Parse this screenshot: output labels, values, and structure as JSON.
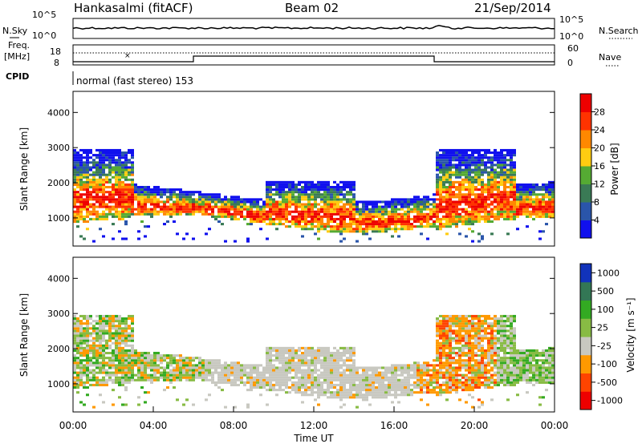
{
  "header": {
    "station": "Hankasalmi (fitACF)",
    "beam": "Beam 02",
    "date": "21/Sep/2014"
  },
  "noise_panel": {
    "left_label": "N.Sky",
    "left_ticks": [
      "10^5",
      "10^0"
    ],
    "right_label": "N.Search",
    "right_ticks": [
      "10^5",
      "10^0"
    ]
  },
  "freq_panel": {
    "left_label_1": "Freq.",
    "left_label_2": "[MHz]",
    "left_ticks": [
      "18",
      "8"
    ],
    "right_label": "Nave",
    "right_ticks": [
      "60",
      "0"
    ]
  },
  "cpid_panel": {
    "label": "CPID",
    "text": "normal (fast stereo) 153"
  },
  "colors": {
    "power": [
      "#1010ee",
      "#2a55aa",
      "#3a7a55",
      "#55aa33",
      "#ffcc11",
      "#ff8800",
      "#ff3300",
      "#ee0000"
    ],
    "velocity": [
      "#ee0000",
      "#ff4400",
      "#ff9900",
      "#c8c8c0",
      "#88bb44",
      "#33aa22",
      "#337755",
      "#1133bb"
    ]
  },
  "chart_data": [
    {
      "type": "heatmap",
      "name": "power",
      "xlabel": "",
      "ylabel": "Slant Range [km]",
      "ylim": [
        200,
        4600
      ],
      "yticks": [
        "1000",
        "2000",
        "3000",
        "4000"
      ],
      "colorbar_label": "Power [dB]",
      "colorbar_ticks": [
        "4",
        "8",
        "12",
        "16",
        "20",
        "24",
        "28"
      ],
      "colorbar_range": [
        0,
        32
      ]
    },
    {
      "type": "heatmap",
      "name": "velocity",
      "xlabel": "Time UT",
      "ylabel": "Slant Range [km]",
      "ylim": [
        200,
        4600
      ],
      "yticks": [
        "1000",
        "2000",
        "3000",
        "4000"
      ],
      "xticks": [
        "00:00",
        "04:00",
        "08:00",
        "12:00",
        "16:00",
        "20:00",
        "00:00"
      ],
      "xlim_hours": [
        0,
        24
      ],
      "colorbar_label": "Velocity [m s⁻¹]",
      "colorbar_ticks": [
        "1000",
        "500",
        "100",
        "25",
        "-25",
        "-100",
        "-500",
        "-1000"
      ]
    }
  ]
}
